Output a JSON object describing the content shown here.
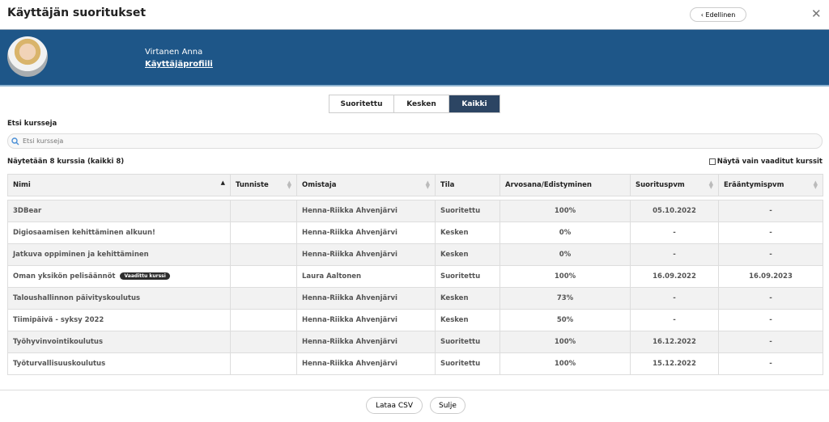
{
  "header": {
    "title": "Käyttäjän suoritukset",
    "prev_label": "‹ Edellinen",
    "close": "✕"
  },
  "user": {
    "name": "Virtanen Anna",
    "profile_link": "Käyttäjäprofiili"
  },
  "tabs": [
    {
      "label": "Suoritettu"
    },
    {
      "label": "Kesken"
    },
    {
      "label": "Kaikki",
      "active": true
    }
  ],
  "search": {
    "label": "Etsi kursseja",
    "placeholder": "Etsi kursseja",
    "value": ""
  },
  "count_text": "Näytetään 8 kurssia (kaikki 8)",
  "required_filter": {
    "label": "Näytä vain vaaditut kurssit",
    "checked": false
  },
  "table": {
    "columns": [
      "Nimi",
      "Tunniste",
      "Omistaja",
      "Tila",
      "Arvosana/Edistyminen",
      "Suorituspvm",
      "Erääntymispvm"
    ],
    "rows": [
      {
        "name": "3DBear",
        "id": "",
        "owner": "Henna-Riikka Ahvenjärvi",
        "status": "Suoritettu",
        "grade": "100%",
        "completed": "05.10.2022",
        "expires": "-"
      },
      {
        "name": "Digiosaamisen kehittäminen alkuun!",
        "id": "",
        "owner": "Henna-Riikka Ahvenjärvi",
        "status": "Kesken",
        "grade": "0%",
        "completed": "-",
        "expires": "-"
      },
      {
        "name": "Jatkuva oppiminen ja kehittäminen",
        "id": "",
        "owner": "Henna-Riikka Ahvenjärvi",
        "status": "Kesken",
        "grade": "0%",
        "completed": "-",
        "expires": "-"
      },
      {
        "name": "Oman yksikön pelisäännöt",
        "badge": "Vaadittu kurssi",
        "id": "",
        "owner": "Laura Aaltonen",
        "status": "Suoritettu",
        "grade": "100%",
        "completed": "16.09.2022",
        "expires": "16.09.2023"
      },
      {
        "name": "Taloushallinnon päivityskoulutus",
        "id": "",
        "owner": "Henna-Riikka Ahvenjärvi",
        "status": "Kesken",
        "grade": "73%",
        "completed": "-",
        "expires": "-"
      },
      {
        "name": "Tiimipäivä - syksy 2022",
        "id": "",
        "owner": "Henna-Riikka Ahvenjärvi",
        "status": "Kesken",
        "grade": "50%",
        "completed": "-",
        "expires": "-"
      },
      {
        "name": "Työhyvinvointikoulutus",
        "id": "",
        "owner": "Henna-Riikka Ahvenjärvi",
        "status": "Suoritettu",
        "grade": "100%",
        "completed": "16.12.2022",
        "expires": "-"
      },
      {
        "name": "Työturvallisuuskoulutus",
        "id": "",
        "owner": "Henna-Riikka Ahvenjärvi",
        "status": "Suoritettu",
        "grade": "100%",
        "completed": "15.12.2022",
        "expires": "-"
      }
    ]
  },
  "footer": {
    "csv_label": "Lataa CSV",
    "close_label": "Sulje"
  },
  "colors": {
    "banner": "#1e5688",
    "active_tab": "#2c4563",
    "badge": "#2d2d2d"
  }
}
